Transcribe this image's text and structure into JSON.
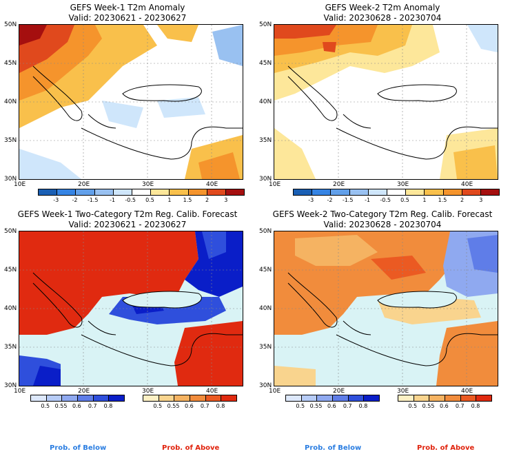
{
  "panels": [
    {
      "title": "GEFS Week-1 T2m Anomaly",
      "valid": "Valid: 20230621 - 20230627"
    },
    {
      "title": "GEFS Week-2 T2m Anomaly",
      "valid": "Valid: 20230628 - 20230704"
    },
    {
      "title": "GEFS Week-1 Two-Category T2m Reg. Calib. Forecast",
      "valid": "Valid: 20230621 - 20230627"
    },
    {
      "title": "GEFS Week-2 Two-Category T2m Reg. Calib. Forecast",
      "valid": "Valid: 20230628 - 20230704"
    }
  ],
  "lat_labels": [
    "50N",
    "45N",
    "40N",
    "35N",
    "30N"
  ],
  "lon_labels": [
    "10E",
    "20E",
    "30E",
    "40E"
  ],
  "anomaly_colorbar": {
    "ticks": [
      "-3",
      "-2",
      "-1.5",
      "-1",
      "-0.5",
      "0.5",
      "1",
      "1.5",
      "2",
      "3"
    ],
    "colors": [
      "#1a5fb4",
      "#3584e4",
      "#62a0ea",
      "#99c1f1",
      "#cfe6fb",
      "#ffffff",
      "#fde79a",
      "#f9c04b",
      "#f5942c",
      "#e0491d",
      "#a50f0f"
    ]
  },
  "below_colorbar": {
    "label": "Prob. of Below",
    "ticks": [
      "0.5",
      "0.55",
      "0.6",
      "0.7",
      "0.8"
    ],
    "colors": [
      "#dde8fb",
      "#b7ccf7",
      "#8fa9f0",
      "#5f7de8",
      "#2f4fdc",
      "#0a1ec8"
    ]
  },
  "above_colorbar": {
    "label": "Prob. of Above",
    "ticks": [
      "0.5",
      "0.55",
      "0.6",
      "0.7",
      "0.8"
    ],
    "colors": [
      "#fdf0c4",
      "#f9d48e",
      "#f5b362",
      "#f18c3c",
      "#eb5a22",
      "#e02a10"
    ]
  },
  "legend_label_colors": {
    "below": "#2a7de1",
    "above": "#e0220c"
  },
  "map_colors": {
    "sea": "#d9f3f5",
    "land_white": "#ffffff"
  }
}
